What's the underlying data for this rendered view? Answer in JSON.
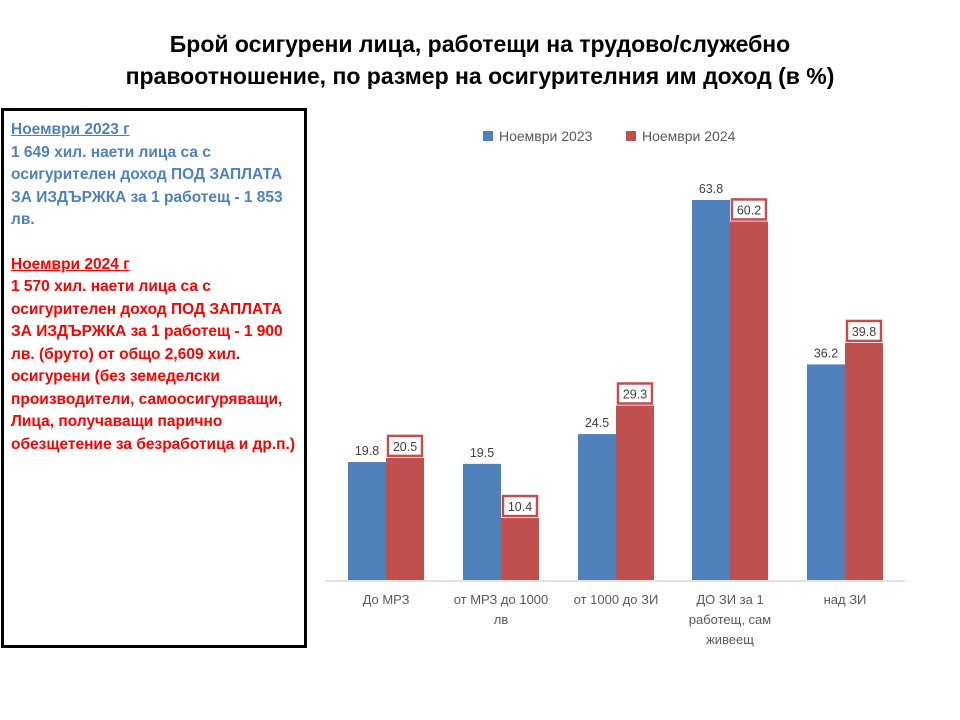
{
  "title": {
    "line1": "Брой осигурени лица, работещи на трудово/служебно",
    "line2": "правоотношение, по размер на осигурителния им доход (в %)"
  },
  "textbox": {
    "block2023": {
      "heading": "Ноември 2023 г",
      "text": "1 649 хил. наети лица са с осигурителен доход  ПОД ЗАПЛАТА ЗА ИЗДЪРЖКА за 1 работещ  - 1 853 лв."
    },
    "block2024": {
      "heading": "Ноември 2024 г",
      "text": "1 570 хил. наети лица са с осигурителен доход  ПОД ЗАПЛАТА ЗА ИЗДЪРЖКА за 1 работещ  - 1 900 лв. (бруто) от общо 2,609 хил. осигурени (без земеделски производители, самоосигуряващи, Лица, получаващи парично обезщетение за безработица  и др.п.)"
    },
    "colors": {
      "block2023": "#4f81bd",
      "block2024": "#ff0000"
    }
  },
  "chart_data": {
    "type": "bar",
    "categories": [
      [
        "До МРЗ"
      ],
      [
        "от МРЗ до 1000",
        "лв"
      ],
      [
        "от 1000 до ЗИ"
      ],
      [
        "ДО ЗИ за 1",
        "работещ, сам",
        "живеещ"
      ],
      [
        "над ЗИ"
      ]
    ],
    "series": [
      {
        "name": "Ноември 2023",
        "color": "#4f81bd",
        "values": [
          19.8,
          19.5,
          24.5,
          63.8,
          36.2
        ]
      },
      {
        "name": "Ноември 2024",
        "color": "#c0504d",
        "values": [
          20.5,
          10.4,
          29.3,
          60.2,
          39.8
        ]
      }
    ],
    "data_labels": true,
    "legend": "top",
    "grid": false,
    "ylim": [
      0,
      70
    ]
  }
}
